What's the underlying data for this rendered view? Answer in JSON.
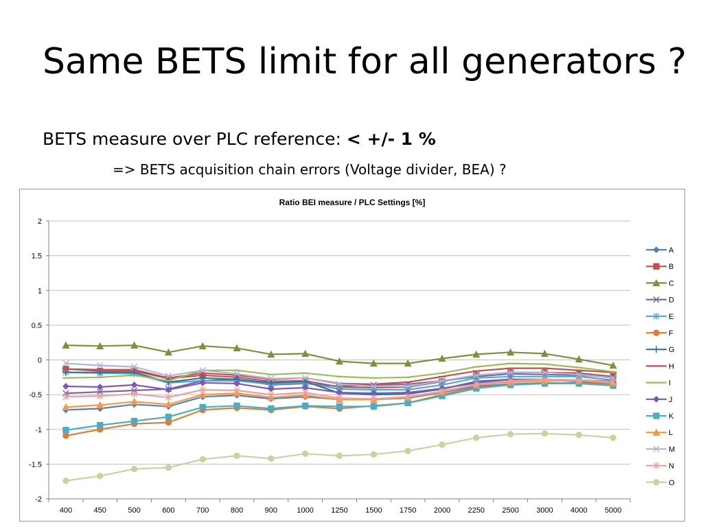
{
  "slide": {
    "title": "Same BETS limit for all generators ?",
    "subtitle_prefix": "BETS measure over PLC reference: ",
    "subtitle_emphasis": "< +/- 1 %",
    "subtitle_line2": "=> BETS acquisition chain errors (Voltage divider, BEA) ?"
  },
  "chart_data": {
    "type": "line",
    "title": "Ratio BEI measure / PLC Settings [%]",
    "xlabel": "",
    "ylabel": "",
    "categories": [
      "400",
      "450",
      "500",
      "600",
      "700",
      "800",
      "900",
      "1000",
      "1250",
      "1500",
      "1750",
      "2000",
      "2250",
      "2500",
      "3000",
      "4000",
      "5000"
    ],
    "ylim": [
      -2,
      2
    ],
    "yticks": [
      2,
      1.5,
      1,
      0.5,
      0,
      -0.5,
      -1,
      -1.5,
      -2
    ],
    "ytick_labels": [
      "2",
      "1.5",
      "1",
      "0.5",
      "0",
      "-0.5",
      "-1",
      "-1.5",
      "-2"
    ],
    "grid": true,
    "legend": "right",
    "series": [
      {
        "name": "A",
        "color": "#4f81bd",
        "marker": "diamond",
        "values": [
          -0.72,
          -0.7,
          -0.64,
          -0.67,
          -0.53,
          -0.51,
          -0.56,
          -0.53,
          -0.57,
          -0.57,
          -0.55,
          -0.47,
          -0.38,
          -0.35,
          -0.33,
          -0.34,
          -0.36
        ]
      },
      {
        "name": "B",
        "color": "#c0504d",
        "marker": "square",
        "values": [
          -0.13,
          -0.16,
          -0.16,
          -0.27,
          -0.22,
          -0.25,
          -0.31,
          -0.3,
          -0.39,
          -0.4,
          -0.39,
          -0.31,
          -0.22,
          -0.18,
          -0.18,
          -0.19,
          -0.24
        ]
      },
      {
        "name": "C",
        "color": "#77933c",
        "marker": "triangle",
        "values": [
          0.21,
          0.2,
          0.21,
          0.11,
          0.2,
          0.17,
          0.08,
          0.09,
          -0.02,
          -0.05,
          -0.05,
          0.02,
          0.08,
          0.11,
          0.09,
          0.01,
          -0.08
        ]
      },
      {
        "name": "D",
        "color": "#8064a2",
        "marker": "x",
        "values": [
          -0.48,
          -0.46,
          -0.44,
          -0.42,
          -0.3,
          -0.28,
          -0.36,
          -0.34,
          -0.38,
          -0.36,
          -0.35,
          -0.3,
          -0.24,
          -0.2,
          -0.21,
          -0.22,
          -0.25
        ]
      },
      {
        "name": "E",
        "color": "#4bacc6",
        "marker": "star",
        "values": [
          -0.18,
          -0.19,
          -0.2,
          -0.33,
          -0.3,
          -0.3,
          -0.35,
          -0.33,
          -0.42,
          -0.43,
          -0.43,
          -0.36,
          -0.26,
          -0.24,
          -0.24,
          -0.24,
          -0.29
        ]
      },
      {
        "name": "F",
        "color": "#e07b39",
        "marker": "circle",
        "values": [
          -1.09,
          -1.0,
          -0.92,
          -0.9,
          -0.72,
          -0.69,
          -0.72,
          -0.67,
          -0.7,
          -0.66,
          -0.62,
          -0.5,
          -0.4,
          -0.36,
          -0.34,
          -0.33,
          -0.35
        ]
      },
      {
        "name": "G",
        "color": "#3a6ea5",
        "marker": "plus",
        "values": [
          -0.18,
          -0.18,
          -0.18,
          -0.32,
          -0.26,
          -0.28,
          -0.33,
          -0.31,
          -0.48,
          -0.5,
          -0.49,
          -0.42,
          -0.31,
          -0.28,
          -0.29,
          -0.31,
          -0.33
        ]
      },
      {
        "name": "H",
        "color": "#c0504d",
        "marker": "dash",
        "values": [
          -0.13,
          -0.14,
          -0.14,
          -0.26,
          -0.19,
          -0.22,
          -0.28,
          -0.26,
          -0.34,
          -0.35,
          -0.32,
          -0.24,
          -0.16,
          -0.12,
          -0.12,
          -0.15,
          -0.18
        ]
      },
      {
        "name": "I",
        "color": "#9bbb59",
        "marker": "dash",
        "values": [
          -0.26,
          -0.25,
          -0.22,
          -0.3,
          -0.15,
          -0.15,
          -0.21,
          -0.19,
          -0.24,
          -0.26,
          -0.25,
          -0.19,
          -0.1,
          -0.05,
          -0.06,
          -0.11,
          -0.17
        ]
      },
      {
        "name": "J",
        "color": "#7e59b3",
        "marker": "diamond",
        "values": [
          -0.38,
          -0.39,
          -0.36,
          -0.43,
          -0.33,
          -0.34,
          -0.42,
          -0.4,
          -0.47,
          -0.48,
          -0.47,
          -0.41,
          -0.33,
          -0.28,
          -0.28,
          -0.29,
          -0.31
        ]
      },
      {
        "name": "K",
        "color": "#4bacc6",
        "marker": "square",
        "values": [
          -1.01,
          -0.94,
          -0.88,
          -0.82,
          -0.68,
          -0.66,
          -0.7,
          -0.66,
          -0.67,
          -0.67,
          -0.62,
          -0.52,
          -0.41,
          -0.36,
          -0.34,
          -0.34,
          -0.37
        ]
      },
      {
        "name": "L",
        "color": "#f79646",
        "marker": "triangle",
        "values": [
          -0.68,
          -0.65,
          -0.6,
          -0.64,
          -0.5,
          -0.48,
          -0.54,
          -0.51,
          -0.57,
          -0.57,
          -0.54,
          -0.46,
          -0.36,
          -0.32,
          -0.3,
          -0.3,
          -0.33
        ]
      },
      {
        "name": "M",
        "color": "#aab7d6",
        "marker": "x",
        "values": [
          -0.05,
          -0.08,
          -0.1,
          -0.23,
          -0.15,
          -0.2,
          -0.27,
          -0.26,
          -0.35,
          -0.38,
          -0.38,
          -0.3,
          -0.22,
          -0.18,
          -0.18,
          -0.21,
          -0.26
        ]
      },
      {
        "name": "N",
        "color": "#e6a3a0",
        "marker": "star",
        "values": [
          -0.53,
          -0.52,
          -0.49,
          -0.54,
          -0.43,
          -0.44,
          -0.5,
          -0.47,
          -0.55,
          -0.56,
          -0.53,
          -0.45,
          -0.35,
          -0.3,
          -0.28,
          -0.29,
          -0.32
        ]
      },
      {
        "name": "O",
        "color": "#c4d6a0",
        "marker": "circle",
        "values": [
          -1.74,
          -1.67,
          -1.57,
          -1.55,
          -1.43,
          -1.38,
          -1.42,
          -1.35,
          -1.38,
          -1.36,
          -1.31,
          -1.22,
          -1.12,
          -1.07,
          -1.06,
          -1.08,
          -1.12
        ]
      }
    ]
  }
}
